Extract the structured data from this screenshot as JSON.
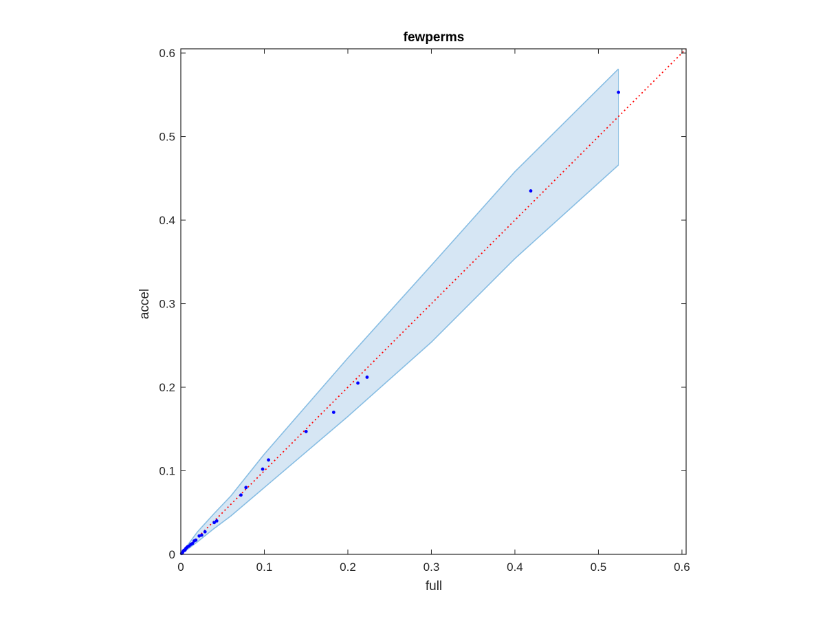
{
  "chart_data": {
    "type": "scatter",
    "title": "fewperms",
    "xlabel": "full",
    "ylabel": "accel",
    "xlim": [
      0,
      0.605
    ],
    "ylim": [
      0,
      0.605
    ],
    "xticks": [
      "0",
      "0.1",
      "0.2",
      "0.3",
      "0.4",
      "0.5",
      "0.6"
    ],
    "yticks": [
      "0",
      "0.1",
      "0.2",
      "0.3",
      "0.4",
      "0.5",
      "0.6"
    ],
    "grid": false,
    "legend": "none",
    "colors": {
      "points": "#0000ff",
      "reference_line": "#ff0000",
      "band_fill": "#d6e6f4",
      "band_edge": "#87bde3",
      "axes": "#262626"
    },
    "series": [
      {
        "type": "scatter",
        "x": [
          0.001,
          0.002,
          0.003,
          0.004,
          0.005,
          0.006,
          0.007,
          0.008,
          0.01,
          0.012,
          0.014,
          0.016,
          0.018,
          0.022,
          0.025,
          0.029,
          0.04,
          0.043,
          0.072,
          0.078,
          0.098,
          0.105,
          0.15,
          0.183,
          0.212,
          0.223,
          0.419,
          0.524
        ],
        "y": [
          0.001,
          0.002,
          0.004,
          0.005,
          0.005,
          0.007,
          0.008,
          0.009,
          0.01,
          0.012,
          0.013,
          0.016,
          0.017,
          0.022,
          0.023,
          0.027,
          0.038,
          0.04,
          0.071,
          0.08,
          0.102,
          0.113,
          0.147,
          0.17,
          0.205,
          0.212,
          0.435,
          0.553
        ]
      },
      {
        "type": "line",
        "x": [
          0,
          0.605
        ],
        "y": [
          0,
          0.605
        ]
      },
      {
        "type": "area",
        "x": [
          0,
          0.02,
          0.04,
          0.06,
          0.1,
          0.2,
          0.3,
          0.4,
          0.524
        ],
        "upper": [
          0,
          0.027,
          0.049,
          0.07,
          0.12,
          0.235,
          0.346,
          0.458,
          0.581
        ],
        "lower": [
          0,
          0.015,
          0.031,
          0.046,
          0.08,
          0.165,
          0.254,
          0.354,
          0.466
        ]
      }
    ]
  }
}
